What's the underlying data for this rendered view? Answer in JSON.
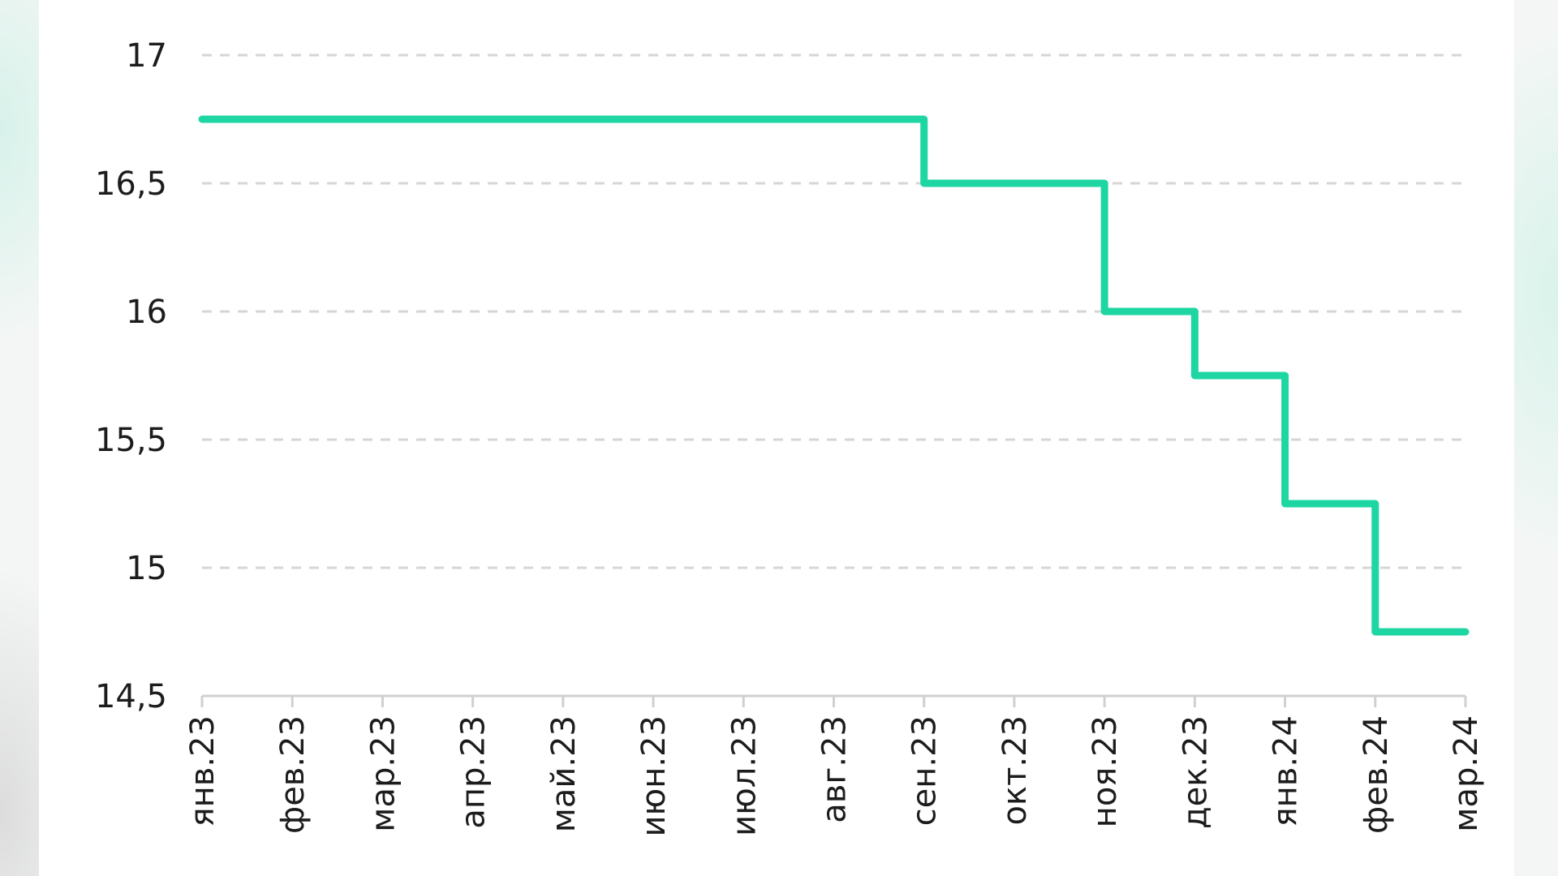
{
  "chart_data": {
    "type": "line",
    "step": "post",
    "title": "",
    "xlabel": "",
    "ylabel": "",
    "categories": [
      "янв.23",
      "фев.23",
      "мар.23",
      "апр.23",
      "май.23",
      "июн.23",
      "июл.23",
      "авг.23",
      "сен.23",
      "окт.23",
      "ноя.23",
      "дек.23",
      "янв.24",
      "фев.24",
      "мар.24"
    ],
    "series": [
      {
        "values": [
          16.75,
          16.75,
          16.75,
          16.75,
          16.75,
          16.75,
          16.75,
          16.75,
          16.5,
          16.5,
          16.0,
          15.75,
          15.25,
          14.75,
          14.75
        ],
        "color": "#1dd6a2"
      }
    ],
    "ylim": [
      14.5,
      17
    ],
    "yticks": [
      14.5,
      15,
      15.5,
      16,
      16.5,
      17
    ],
    "ytick_labels": [
      "14,5",
      "15",
      "15,5",
      "16",
      "16,5",
      "17"
    ],
    "grid": "horizontal dashed",
    "legend": "none"
  }
}
